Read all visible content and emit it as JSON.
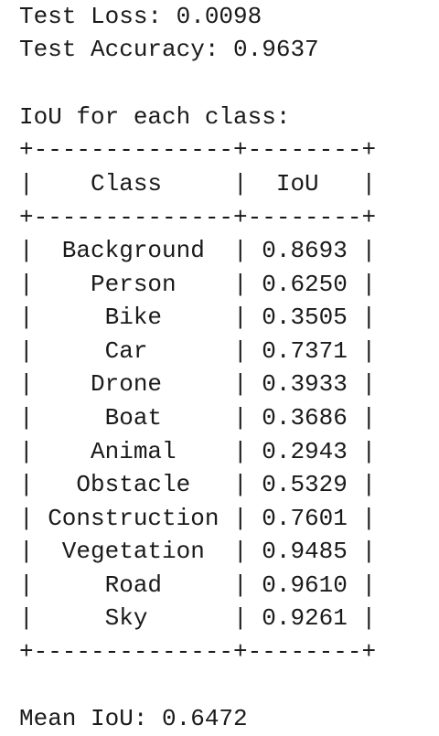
{
  "summary": {
    "test_loss": "Test Loss: 0.0098",
    "test_accuracy": "Test Accuracy: 0.9637",
    "iou_heading": "IoU for each class:",
    "mean_iou": "Mean IoU: 0.6472"
  },
  "table": {
    "border": "+--------------+--------+",
    "header": "|    Class     |  IoU   |",
    "rows": [
      "|  Background  | 0.8693 |",
      "|    Person    | 0.6250 |",
      "|     Bike     | 0.3505 |",
      "|     Car      | 0.7371 |",
      "|    Drone     | 0.3933 |",
      "|     Boat     | 0.3686 |",
      "|    Animal    | 0.2943 |",
      "|   Obstacle   | 0.5329 |",
      "| Construction | 0.7601 |",
      "|  Vegetation  | 0.9485 |",
      "|     Road     | 0.9610 |",
      "|     Sky      | 0.9261 |"
    ]
  }
}
